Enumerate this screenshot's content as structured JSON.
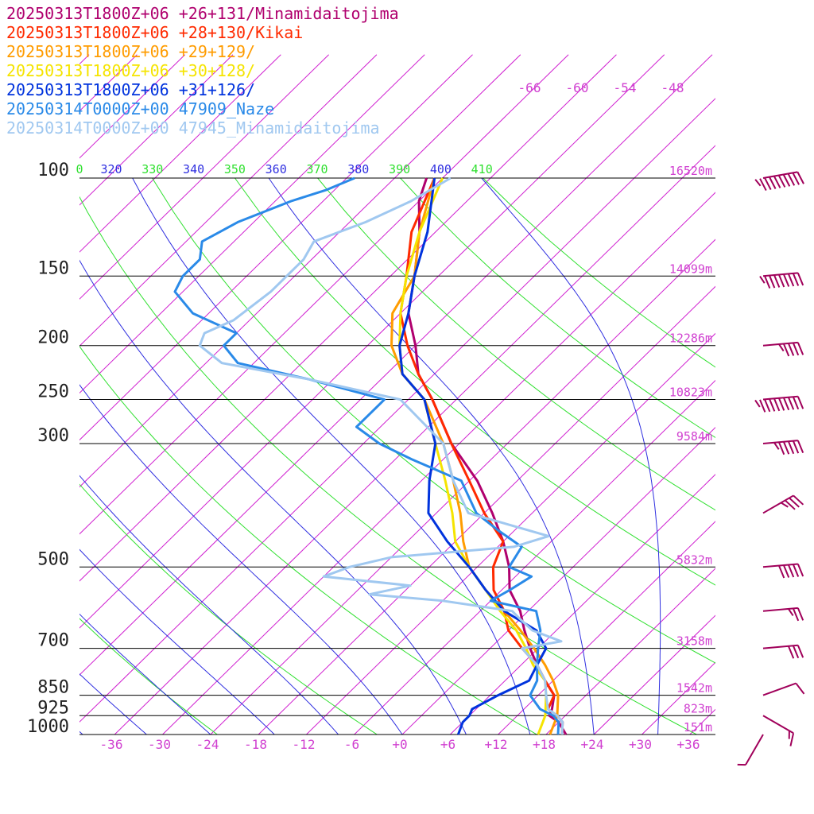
{
  "legend": [
    {
      "text": "20250313T1800Z+06 +26+131/Minamidaitojima",
      "color": "#b0006e"
    },
    {
      "text": "20250313T1800Z+06 +28+130/Kikai",
      "color": "#ff2a00"
    },
    {
      "text": "20250313T1800Z+06 +29+129/",
      "color": "#ff9c00"
    },
    {
      "text": "20250313T1800Z+06 +30+128/",
      "color": "#f5e400"
    },
    {
      "text": "20250313T1800Z+06 +31+126/",
      "color": "#0033dd"
    },
    {
      "text": "20250314T0000Z+00 47909_Naze",
      "color": "#2a8ae8"
    },
    {
      "text": "20250314T0000Z+00 47945_Minamidaitojima",
      "color": "#a0c8f0"
    }
  ],
  "colors": {
    "isotherm": "#d020d0",
    "theta": "#30e030",
    "theta_e": "#3030e0",
    "isobar": "#000000",
    "pressure_label": "#222222",
    "temp_label": "#d040d0",
    "barb": "#a0005a"
  },
  "chart_data": {
    "type": "line",
    "title": "",
    "xlabel": "",
    "ylabel": "",
    "pressure_levels": [
      100,
      150,
      200,
      250,
      300,
      500,
      700,
      850,
      925,
      1000
    ],
    "pressure_labels": [
      "100",
      "150",
      "200",
      "250",
      "300",
      "500",
      "700",
      "850",
      "925",
      "1000"
    ],
    "heights": [
      "16520m",
      "14099m",
      "12286m",
      "10823m",
      "9584m",
      "5832m",
      "3158m",
      "1542m",
      "823m",
      "151m"
    ],
    "temperature_ticks": [
      "-36",
      "-30",
      "-24",
      "-18",
      "-12",
      "-6",
      "+0",
      "+6",
      "+12",
      "+18",
      "+24",
      "+30",
      "+36"
    ],
    "upper_temperature_ticks": [
      "-66",
      "-60",
      "-54",
      "-48"
    ],
    "theta_labels": [
      "0",
      "320",
      "330",
      "340",
      "350",
      "360",
      "370",
      "380",
      "390",
      "400",
      "410"
    ],
    "series": [
      {
        "name": "20250313T1800Z+06 +26+131/Minamidaitojima",
        "color": "#b0006e",
        "points": [
          [
            1000,
            20.5
          ],
          [
            950,
            18
          ],
          [
            925,
            16
          ],
          [
            900,
            15.5
          ],
          [
            850,
            14
          ],
          [
            800,
            11
          ],
          [
            750,
            8
          ],
          [
            700,
            5
          ],
          [
            650,
            2
          ],
          [
            600,
            -1
          ],
          [
            550,
            -5
          ],
          [
            500,
            -8
          ],
          [
            450,
            -12
          ],
          [
            400,
            -17
          ],
          [
            350,
            -23
          ],
          [
            300,
            -31
          ],
          [
            250,
            -39
          ],
          [
            225,
            -44
          ],
          [
            200,
            -48
          ],
          [
            175,
            -53
          ],
          [
            150,
            -57
          ],
          [
            125,
            -62
          ],
          [
            110,
            -66
          ],
          [
            100,
            -68
          ]
        ]
      },
      {
        "name": "20250313T1800Z+06 +28+130/Kikai",
        "color": "#ff2a00",
        "points": [
          [
            1000,
            20
          ],
          [
            950,
            18.5
          ],
          [
            925,
            17
          ],
          [
            900,
            15
          ],
          [
            850,
            14
          ],
          [
            800,
            11
          ],
          [
            750,
            8
          ],
          [
            700,
            4
          ],
          [
            650,
            0
          ],
          [
            600,
            -3
          ],
          [
            550,
            -7
          ],
          [
            500,
            -10
          ],
          [
            450,
            -12
          ],
          [
            400,
            -18
          ],
          [
            350,
            -24
          ],
          [
            300,
            -31
          ],
          [
            250,
            -39
          ],
          [
            225,
            -44
          ],
          [
            200,
            -49
          ],
          [
            175,
            -54
          ],
          [
            150,
            -58
          ],
          [
            125,
            -63
          ],
          [
            100,
            -67
          ]
        ]
      },
      {
        "name": "20250313T1800Z+06 +29+129/",
        "color": "#ff9c00",
        "points": [
          [
            1000,
            18.5
          ],
          [
            925,
            17
          ],
          [
            850,
            14.5
          ],
          [
            800,
            12
          ],
          [
            750,
            9
          ],
          [
            700,
            5.5
          ],
          [
            650,
            1.5
          ],
          [
            600,
            -3
          ],
          [
            550,
            -8
          ],
          [
            500,
            -13
          ],
          [
            450,
            -17
          ],
          [
            400,
            -21
          ],
          [
            350,
            -26
          ],
          [
            300,
            -32
          ],
          [
            250,
            -40
          ],
          [
            225,
            -46
          ],
          [
            200,
            -51
          ],
          [
            175,
            -55
          ],
          [
            150,
            -57
          ],
          [
            125,
            -62
          ],
          [
            100,
            -67
          ]
        ]
      },
      {
        "name": "20250313T1800Z+06 +30+128/",
        "color": "#f5e400",
        "points": [
          [
            1000,
            17
          ],
          [
            925,
            15.5
          ],
          [
            850,
            13
          ],
          [
            800,
            11
          ],
          [
            750,
            7.5
          ],
          [
            700,
            4.5
          ],
          [
            650,
            1
          ],
          [
            600,
            -3.5
          ],
          [
            550,
            -8
          ],
          [
            500,
            -13
          ],
          [
            450,
            -18
          ],
          [
            400,
            -22
          ],
          [
            350,
            -27
          ],
          [
            300,
            -33
          ],
          [
            250,
            -40
          ],
          [
            225,
            -46
          ],
          [
            200,
            -50
          ],
          [
            175,
            -54
          ],
          [
            150,
            -58
          ],
          [
            125,
            -62
          ],
          [
            100,
            -66
          ]
        ]
      },
      {
        "name": "20250313T1800Z+06 +31+126/",
        "color": "#0033dd",
        "points": [
          [
            1000,
            7
          ],
          [
            950,
            6
          ],
          [
            925,
            6
          ],
          [
            900,
            5.5
          ],
          [
            850,
            7
          ],
          [
            800,
            9
          ],
          [
            750,
            8
          ],
          [
            700,
            7
          ],
          [
            650,
            3.5
          ],
          [
            600,
            -3
          ],
          [
            550,
            -8
          ],
          [
            500,
            -13
          ],
          [
            450,
            -19
          ],
          [
            400,
            -25
          ],
          [
            350,
            -29
          ],
          [
            300,
            -33
          ],
          [
            250,
            -40
          ],
          [
            225,
            -46
          ],
          [
            200,
            -50
          ],
          [
            175,
            -53
          ],
          [
            150,
            -57
          ],
          [
            125,
            -61
          ],
          [
            100,
            -67
          ]
        ]
      },
      {
        "name": "20250314T0000Z+00 47909_Naze",
        "color": "#2a8ae8",
        "points": [
          [
            1000,
            19.5
          ],
          [
            950,
            18
          ],
          [
            925,
            16.5
          ],
          [
            900,
            14
          ],
          [
            850,
            11
          ],
          [
            800,
            10
          ],
          [
            750,
            8
          ],
          [
            700,
            6
          ],
          [
            650,
            4
          ],
          [
            600,
            1
          ],
          [
            575,
            -6
          ],
          [
            550,
            -5
          ],
          [
            520,
            -4
          ],
          [
            500,
            -8
          ],
          [
            460,
            -9
          ],
          [
            430,
            -14
          ],
          [
            400,
            -19
          ],
          [
            350,
            -25
          ],
          [
            320,
            -34
          ],
          [
            300,
            -40
          ],
          [
            280,
            -45
          ],
          [
            250,
            -45
          ],
          [
            230,
            -57
          ],
          [
            215,
            -68
          ],
          [
            200,
            -72
          ],
          [
            190,
            -72
          ],
          [
            175,
            -80
          ],
          [
            160,
            -85
          ],
          [
            150,
            -86
          ],
          [
            140,
            -86
          ],
          [
            130,
            -88
          ],
          [
            120,
            -86
          ],
          [
            110,
            -82
          ],
          [
            105,
            -79
          ],
          [
            100,
            -77
          ]
        ]
      },
      {
        "name": "20250314T0000Z+00 47945_Minamidaitojima",
        "color": "#a0c8f0",
        "points": [
          [
            1000,
            20
          ],
          [
            950,
            18.5
          ],
          [
            925,
            17
          ],
          [
            900,
            15
          ],
          [
            850,
            13
          ],
          [
            800,
            11
          ],
          [
            750,
            8
          ],
          [
            700,
            4
          ],
          [
            680,
            8
          ],
          [
            650,
            3
          ],
          [
            620,
            0
          ],
          [
            600,
            -2
          ],
          [
            575,
            -12
          ],
          [
            560,
            -22
          ],
          [
            540,
            -18
          ],
          [
            520,
            -30
          ],
          [
            500,
            -28
          ],
          [
            480,
            -24
          ],
          [
            460,
            -10
          ],
          [
            440,
            -7
          ],
          [
            400,
            -20
          ],
          [
            350,
            -26
          ],
          [
            300,
            -32
          ],
          [
            250,
            -43
          ],
          [
            230,
            -57
          ],
          [
            215,
            -70
          ],
          [
            200,
            -75
          ],
          [
            190,
            -76
          ],
          [
            180,
            -74
          ],
          [
            160,
            -73
          ],
          [
            150,
            -73
          ],
          [
            140,
            -73
          ],
          [
            130,
            -74
          ],
          [
            120,
            -70
          ],
          [
            110,
            -67
          ],
          [
            100,
            -65
          ]
        ]
      }
    ],
    "wind_barbs": [
      {
        "p": 100,
        "speed": 95,
        "dir": 260
      },
      {
        "p": 150,
        "speed": 85,
        "dir": 265
      },
      {
        "p": 200,
        "speed": 45,
        "dir": 265
      },
      {
        "p": 250,
        "speed": 95,
        "dir": 265
      },
      {
        "p": 300,
        "speed": 55,
        "dir": 265
      },
      {
        "p": 400,
        "speed": 35,
        "dir": 240
      },
      {
        "p": 500,
        "speed": 50,
        "dir": 265
      },
      {
        "p": 600,
        "speed": 25,
        "dir": 265
      },
      {
        "p": 700,
        "speed": 30,
        "dir": 265
      },
      {
        "p": 850,
        "speed": 10,
        "dir": 250
      },
      {
        "p": 925,
        "speed": 15,
        "dir": 300
      },
      {
        "p": 1000,
        "speed": 5,
        "dir": 30
      }
    ]
  }
}
